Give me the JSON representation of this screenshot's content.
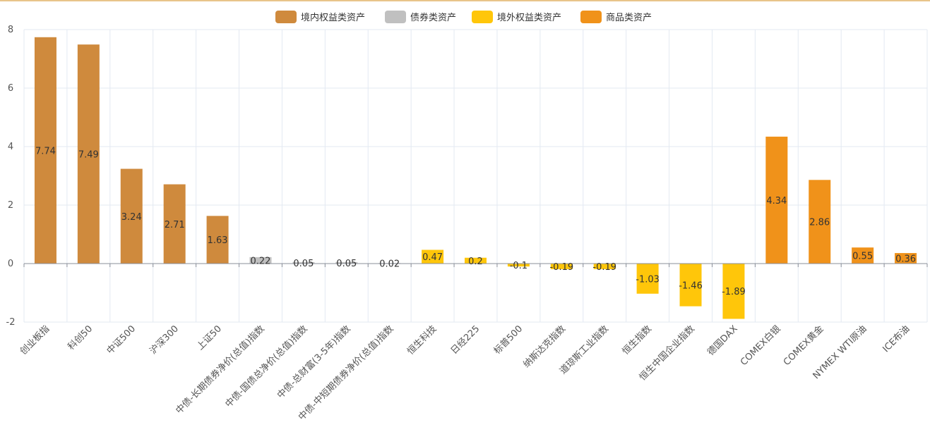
{
  "chart_data": {
    "type": "bar",
    "title": "",
    "xlabel": "",
    "ylabel": "",
    "ylim": [
      -2,
      8
    ],
    "yticks": [
      -2,
      0,
      2,
      4,
      6,
      8
    ],
    "grid": true,
    "legend_position": "top-center",
    "groups": [
      {
        "name": "境内权益类资产",
        "color": "#cf8a3d"
      },
      {
        "name": "债券类资产",
        "color": "#c0c0c0"
      },
      {
        "name": "境外权益类资产",
        "color": "#ffc60a"
      },
      {
        "name": "商品类资产",
        "color": "#f0921a"
      }
    ],
    "categories": [
      "创业板指",
      "科创50",
      "中证500",
      "沪深300",
      "上证50",
      "中债-长期债券净价(总值)指数",
      "中债-国债总净价(总值)指数",
      "中债-总财富(3-5年)指数",
      "中债-中短期债券净价(总值)指数",
      "恒生科技",
      "日经225",
      "标普500",
      "纳斯达克指数",
      "道琼斯工业指数",
      "恒生指数",
      "恒生中国企业指数",
      "德国DAX",
      "COMEX白银",
      "COMEX黄金",
      "NYMEX WTI原油",
      "ICE布油"
    ],
    "values": [
      7.74,
      7.49,
      3.24,
      2.71,
      1.63,
      0.22,
      0.05,
      0.05,
      0.02,
      0.47,
      0.2,
      -0.1,
      -0.19,
      -0.19,
      -1.03,
      -1.46,
      -1.89,
      4.34,
      2.86,
      0.55,
      0.36
    ],
    "labels": [
      "7.74",
      "7.49",
      "3.24",
      "2.71",
      "1.63",
      "0.22",
      "0.05",
      "0.05",
      "0.02",
      "0.47",
      "0.2",
      "-0.1",
      "-0.19",
      "-0.19",
      "-1.03",
      "-1.46",
      "-1.89",
      "4.34",
      "2.86",
      "0.55",
      "0.36"
    ],
    "group_index": [
      0,
      0,
      0,
      0,
      0,
      1,
      1,
      1,
      1,
      2,
      2,
      2,
      2,
      2,
      2,
      2,
      2,
      3,
      3,
      3,
      3
    ]
  }
}
